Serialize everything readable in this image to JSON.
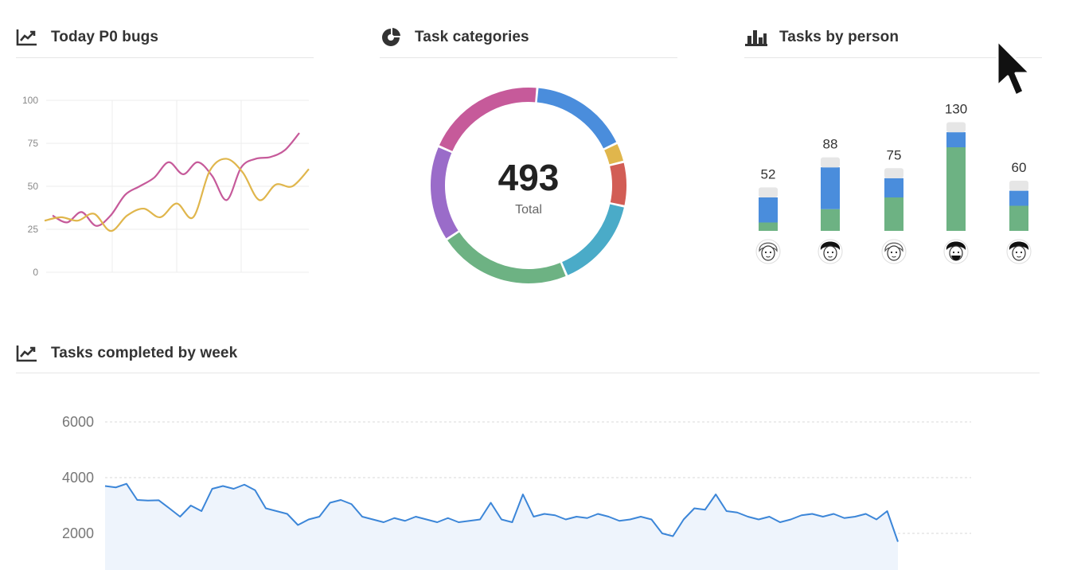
{
  "panels": {
    "p0_bugs": {
      "title": "Today P0 bugs",
      "icon": "line-chart-icon"
    },
    "categories": {
      "title": "Task categories",
      "icon": "pie-chart-icon",
      "total_value": "493",
      "total_label": "Total"
    },
    "by_person": {
      "title": "Tasks by person",
      "icon": "bar-chart-icon"
    },
    "by_week": {
      "title": "Tasks completed by week",
      "icon": "line-chart-icon"
    }
  },
  "colors": {
    "pink": "#c65a9a",
    "yellow": "#e0b64c",
    "blue": "#4a8ddc",
    "green": "#6db283",
    "teal": "#4aabc8",
    "red": "#d25d55",
    "purple": "#9a6cc9",
    "gray": "#e6e6e6",
    "line_blue": "#3c86d8"
  },
  "chart_data": [
    {
      "type": "line",
      "yticks": [
        0,
        25,
        50,
        75,
        100
      ],
      "ylim": [
        0,
        100
      ],
      "grid": true,
      "series": [
        {
          "color": "#c65a9a",
          "values": [
            33,
            29,
            35,
            27,
            33,
            45,
            50,
            55,
            64,
            57,
            64,
            56,
            42,
            61,
            66,
            67,
            71,
            81
          ]
        },
        {
          "color": "#e0b64c",
          "values": [
            30,
            32,
            30,
            34,
            24,
            33,
            37,
            32,
            40,
            32,
            59,
            66,
            58,
            42,
            51,
            50,
            60
          ]
        }
      ]
    },
    {
      "type": "pie",
      "style": "donut",
      "total": 493,
      "slices": [
        {
          "value": 81,
          "color": "#4a8ddc"
        },
        {
          "value": 16,
          "color": "#e0b64c"
        },
        {
          "value": 36,
          "color": "#d25d55"
        },
        {
          "value": 75,
          "color": "#4aabc8"
        },
        {
          "value": 109,
          "color": "#6db283"
        },
        {
          "value": 78,
          "color": "#9a6cc9"
        },
        {
          "value": 98,
          "color": "#c65a9a"
        }
      ]
    },
    {
      "type": "bar",
      "stacked": true,
      "people": [
        {
          "total_label": "52",
          "segments": [
            {
              "value": 10,
              "color": "#6db283"
            },
            {
              "value": 30,
              "color": "#4a8ddc"
            },
            {
              "value": 12,
              "color": "#e6e6e6"
            }
          ]
        },
        {
          "total_label": "88",
          "segments": [
            {
              "value": 26,
              "color": "#6db283"
            },
            {
              "value": 50,
              "color": "#4a8ddc"
            },
            {
              "value": 12,
              "color": "#e6e6e6"
            }
          ]
        },
        {
          "total_label": "75",
          "segments": [
            {
              "value": 40,
              "color": "#6db283"
            },
            {
              "value": 23,
              "color": "#4a8ddc"
            },
            {
              "value": 12,
              "color": "#e6e6e6"
            }
          ]
        },
        {
          "total_label": "130",
          "segments": [
            {
              "value": 100,
              "color": "#6db283"
            },
            {
              "value": 18,
              "color": "#4a8ddc"
            },
            {
              "value": 12,
              "color": "#e6e6e6"
            }
          ]
        },
        {
          "total_label": "60",
          "segments": [
            {
              "value": 30,
              "color": "#6db283"
            },
            {
              "value": 18,
              "color": "#4a8ddc"
            },
            {
              "value": 12,
              "color": "#e6e6e6"
            }
          ]
        }
      ]
    },
    {
      "type": "area",
      "yticks": [
        2000,
        4000,
        6000
      ],
      "ylim": [
        1700,
        6400
      ],
      "grid": true,
      "values": [
        3700,
        3650,
        3780,
        3200,
        3180,
        3190,
        2900,
        2600,
        3000,
        2800,
        3600,
        3700,
        3600,
        3750,
        3550,
        2900,
        2800,
        2700,
        2300,
        2500,
        2600,
        3100,
        3200,
        3050,
        2600,
        2500,
        2400,
        2550,
        2450,
        2600,
        2500,
        2400,
        2550,
        2400,
        2450,
        2500,
        3100,
        2500,
        2400,
        3400,
        2600,
        2700,
        2650,
        2500,
        2600,
        2550,
        2700,
        2600,
        2450,
        2500,
        2600,
        2500,
        2000,
        1900,
        2500,
        2900,
        2850,
        3400,
        2800,
        2750,
        2600,
        2500,
        2600,
        2400,
        2500,
        2650,
        2700,
        2600,
        2700,
        2550,
        2600,
        2700,
        2500,
        2800,
        1700
      ]
    }
  ]
}
